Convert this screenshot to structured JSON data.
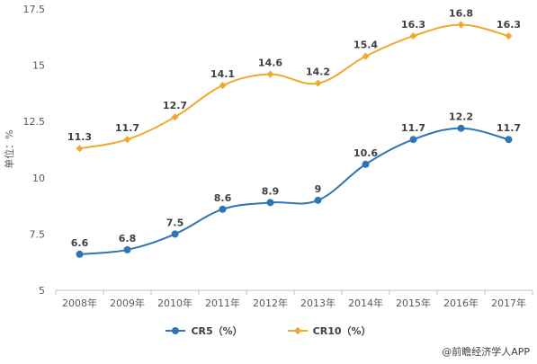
{
  "chart_data": {
    "type": "line",
    "title": "",
    "xlabel": "",
    "ylabel": "单位：%",
    "categories": [
      "2008年",
      "2009年",
      "2010年",
      "2011年",
      "2012年",
      "2013年",
      "2014年",
      "2015年",
      "2016年",
      "2017年"
    ],
    "ylim": [
      5,
      17.5
    ],
    "yticks": [
      5,
      7.5,
      10,
      12.5,
      15,
      17.5
    ],
    "ytick_labels": [
      "5",
      "7.5",
      "10",
      "12.5",
      "15",
      "17.5"
    ],
    "grid": false,
    "legend_position": "bottom",
    "series": [
      {
        "name": "CR5（%）",
        "color": "#2E75B6",
        "marker": "circle",
        "values": [
          6.6,
          6.8,
          7.5,
          8.6,
          8.9,
          9,
          10.6,
          11.7,
          12.2,
          11.7
        ]
      },
      {
        "name": "CR10（%）",
        "color": "#F0A830",
        "marker": "diamond",
        "values": [
          11.3,
          11.7,
          12.7,
          14.1,
          14.6,
          14.2,
          15.4,
          16.3,
          16.8,
          16.3
        ]
      }
    ]
  },
  "source_text": "@前瞻经济学人APP"
}
